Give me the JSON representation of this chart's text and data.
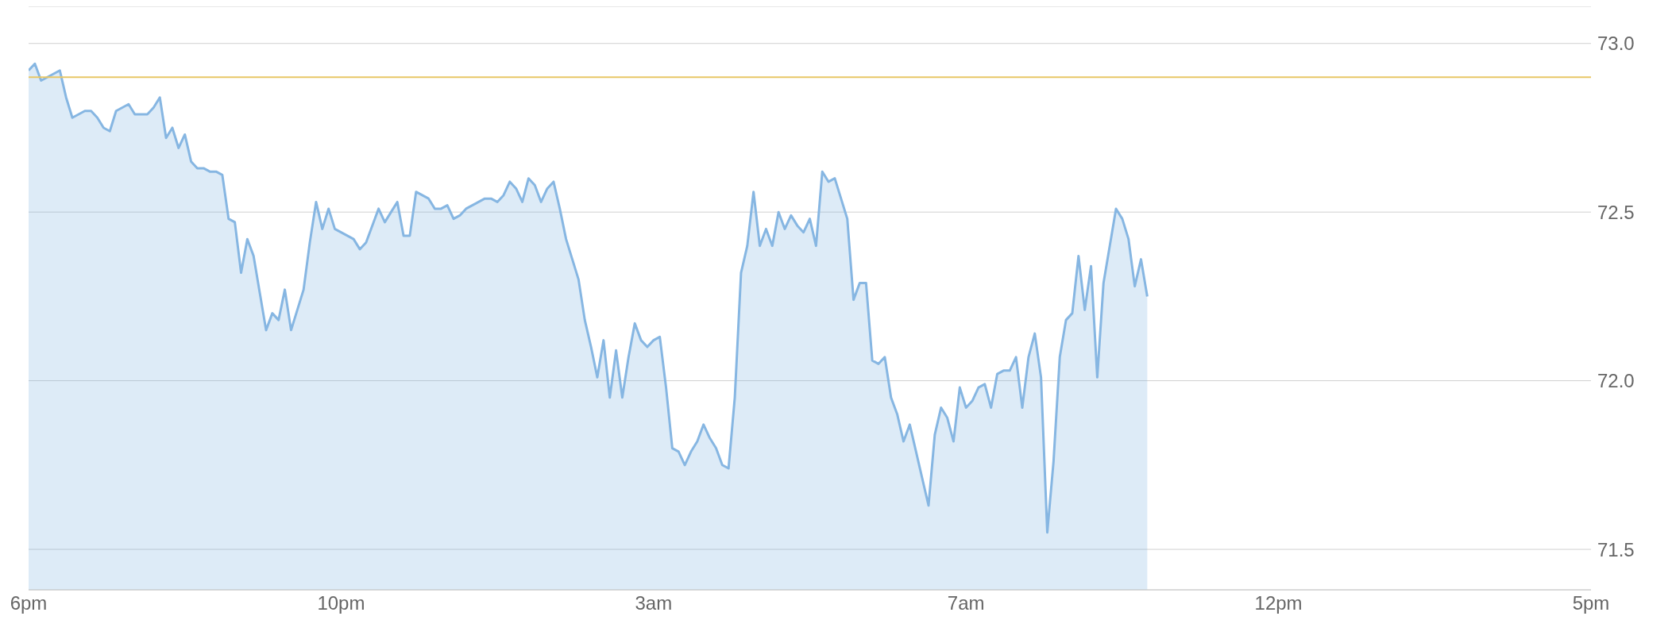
{
  "chart_data": {
    "type": "area",
    "categories": [
      "6pm",
      null,
      null,
      null,
      null,
      null,
      null,
      null,
      null,
      null,
      null,
      null,
      null,
      null,
      null,
      null,
      null,
      null,
      null,
      null,
      null,
      null,
      null,
      null,
      null,
      null,
      null,
      null,
      null,
      null,
      null,
      null,
      null,
      null,
      null,
      null,
      null,
      null,
      null,
      null,
      null,
      null,
      null,
      null,
      null,
      null,
      null,
      null,
      null,
      null,
      "10pm",
      null,
      null,
      null,
      null,
      null,
      null,
      null,
      null,
      null,
      null,
      null,
      null,
      null,
      null,
      null,
      null,
      null,
      null,
      null,
      null,
      null,
      null,
      null,
      null,
      null,
      null,
      null,
      null,
      null,
      null,
      null,
      null,
      null,
      null,
      null,
      null,
      null,
      null,
      null,
      null,
      null,
      null,
      null,
      null,
      null,
      null,
      null,
      null,
      null,
      "3am",
      null,
      null,
      null,
      null,
      null,
      null,
      null,
      null,
      null,
      null,
      null,
      null,
      null,
      null,
      null,
      null,
      null,
      null,
      null,
      null,
      null,
      null,
      null,
      null,
      null,
      null,
      null,
      null,
      null,
      null,
      null,
      null,
      null,
      null,
      null,
      null,
      null,
      null,
      null,
      null,
      null,
      null,
      null,
      null,
      null,
      null,
      null,
      null,
      null,
      "7am",
      null,
      null,
      null,
      null,
      null,
      null,
      null,
      null,
      null,
      null,
      null,
      null,
      null,
      null,
      null,
      null,
      null,
      null,
      null,
      null,
      null,
      null,
      null,
      null,
      null,
      null,
      null,
      null,
      null,
      null,
      null,
      null,
      null,
      null,
      null,
      null,
      null,
      null,
      null,
      null,
      null,
      null,
      null,
      null,
      null,
      null,
      null,
      null,
      null,
      "12pm",
      null,
      null,
      null,
      null,
      null,
      null,
      null,
      null,
      null,
      null,
      null,
      null,
      null,
      null,
      null,
      null,
      null,
      null,
      null,
      null,
      null,
      null,
      null,
      null,
      null,
      null,
      null,
      null,
      null,
      null,
      null,
      null,
      null,
      null,
      null,
      null,
      null,
      null,
      null,
      null,
      null,
      null,
      null,
      null,
      null,
      null,
      null,
      null,
      null,
      "5pm"
    ],
    "ylim": [
      71.38,
      73.11
    ],
    "yticks": [
      {
        "value": 71.5,
        "label": "71.5"
      },
      {
        "value": 72,
        "label": "72.0"
      },
      {
        "value": 72.5,
        "label": "72.5"
      },
      {
        "value": 73,
        "label": "73.0"
      }
    ],
    "grid": "y",
    "ref_lines": [
      {
        "axis": "y",
        "value": 72.9,
        "color": "#e8c766"
      }
    ],
    "series": [
      {
        "color": "#86b6e2",
        "values": [
          72.92,
          72.94,
          72.89,
          72.9,
          72.91,
          72.92,
          72.84,
          72.78,
          72.79,
          72.8,
          72.8,
          72.78,
          72.75,
          72.74,
          72.8,
          72.81,
          72.82,
          72.79,
          72.79,
          72.79,
          72.81,
          72.84,
          72.72,
          72.75,
          72.69,
          72.73,
          72.65,
          72.63,
          72.63,
          72.62,
          72.62,
          72.61,
          72.48,
          72.47,
          72.32,
          72.42,
          72.37,
          72.26,
          72.15,
          72.2,
          72.18,
          72.27,
          72.15,
          72.21,
          72.27,
          72.41,
          72.53,
          72.45,
          72.51,
          72.45,
          72.44,
          72.43,
          72.42,
          72.39,
          72.41,
          72.46,
          72.51,
          72.47,
          72.5,
          72.53,
          72.43,
          72.43,
          72.56,
          72.55,
          72.54,
          72.51,
          72.51,
          72.52,
          72.48,
          72.49,
          72.51,
          72.52,
          72.53,
          72.54,
          72.54,
          72.53,
          72.55,
          72.59,
          72.57,
          72.53,
          72.6,
          72.58,
          72.53,
          72.57,
          72.59,
          72.51,
          72.42,
          72.36,
          72.3,
          72.18,
          72.1,
          72.01,
          72.12,
          71.95,
          72.09,
          71.95,
          72.07,
          72.17,
          72.12,
          72.1,
          72.12,
          72.13,
          71.98,
          71.8,
          71.79,
          71.75,
          71.79,
          71.82,
          71.87,
          71.83,
          71.8,
          71.75,
          71.74,
          71.95,
          72.32,
          72.4,
          72.56,
          72.4,
          72.45,
          72.4,
          72.5,
          72.45,
          72.49,
          72.46,
          72.44,
          72.48,
          72.4,
          72.62,
          72.59,
          72.6,
          72.54,
          72.48,
          72.24,
          72.29,
          72.29,
          72.06,
          72.05,
          72.07,
          71.95,
          71.9,
          71.82,
          71.87,
          71.79,
          71.71,
          71.63,
          71.84,
          71.92,
          71.89,
          71.82,
          71.98,
          71.92,
          71.94,
          71.98,
          71.99,
          71.92,
          72.02,
          72.03,
          72.03,
          72.07,
          71.92,
          72.07,
          72.14,
          72.01,
          71.55,
          71.76,
          72.07,
          72.18,
          72.2,
          72.37,
          72.21,
          72.34,
          72.01,
          72.29,
          72.4,
          72.51,
          72.48,
          72.42,
          72.28,
          72.36,
          72.25,
          null,
          null,
          null,
          null,
          null,
          null,
          null,
          null,
          null,
          null,
          null,
          null,
          null,
          null,
          null,
          null,
          null,
          null,
          null,
          null,
          null,
          null,
          null,
          null,
          null,
          null,
          null,
          null,
          null,
          null,
          null,
          null,
          null,
          null,
          null,
          null,
          null,
          null,
          null,
          null,
          null,
          null,
          null,
          null,
          null,
          null,
          null,
          null,
          null,
          null,
          null,
          null,
          null,
          null,
          null,
          null,
          null,
          null,
          null,
          null,
          null,
          null,
          null,
          null,
          null,
          null,
          null,
          null,
          null,
          null,
          null
        ]
      }
    ]
  }
}
